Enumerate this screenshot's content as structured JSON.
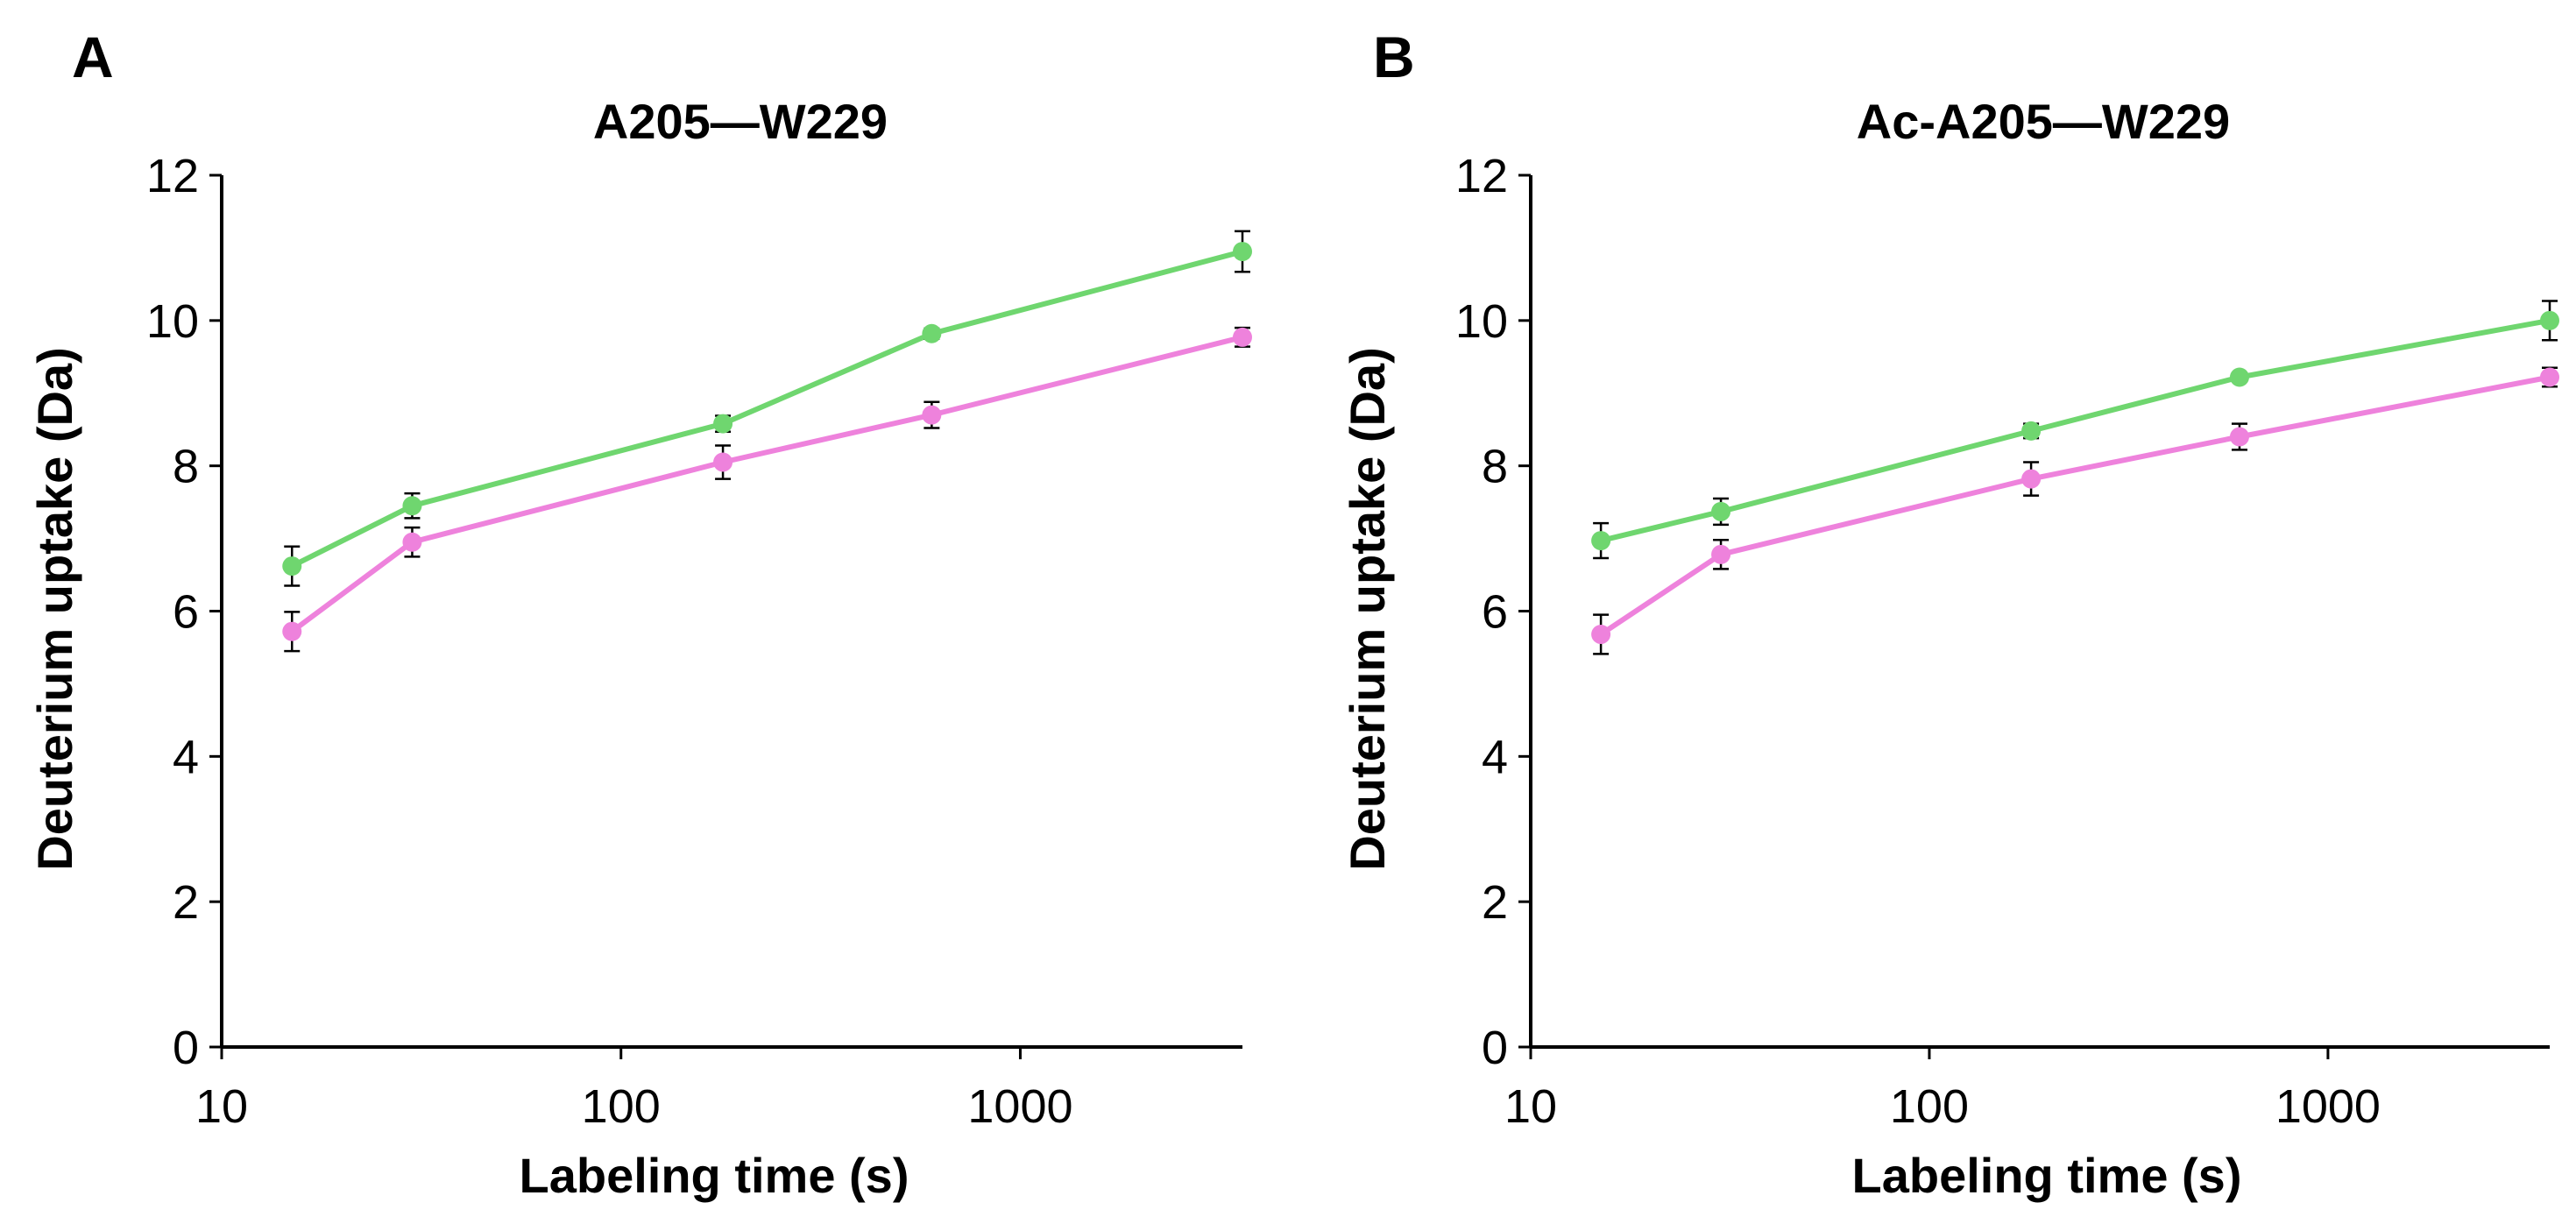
{
  "chart_data": [
    {
      "type": "line",
      "panel_letter": "A",
      "title": "A205—W229",
      "xlabel": "Labeling time (s)",
      "ylabel": "Deuterium uptake (Da)",
      "xscale": "log",
      "xlim": [
        10,
        3600
      ],
      "ylim": [
        0,
        12
      ],
      "xticks": [
        10,
        100,
        1000
      ],
      "xtick_labels": [
        "10",
        "100",
        "1000"
      ],
      "yticks": [
        0,
        2,
        4,
        6,
        8,
        10,
        12
      ],
      "ytick_labels": [
        "0",
        "2",
        "4",
        "6",
        "8",
        "10",
        "12"
      ],
      "grid": false,
      "x": [
        15,
        30,
        180,
        600,
        3600
      ],
      "series": [
        {
          "name": "green",
          "color": "#6fd66f",
          "values": [
            6.62,
            7.45,
            8.58,
            9.82,
            10.95
          ],
          "errors": [
            0.27,
            0.17,
            0.11,
            0.07,
            0.28
          ]
        },
        {
          "name": "pink",
          "color": "#ee82dc",
          "values": [
            5.72,
            6.95,
            8.05,
            8.7,
            9.77
          ],
          "errors": [
            0.27,
            0.2,
            0.23,
            0.18,
            0.13
          ]
        }
      ]
    },
    {
      "type": "line",
      "panel_letter": "B",
      "title": "Ac-A205—W229",
      "xlabel": "Labeling time (s)",
      "ylabel": "Deuterium uptake (Da)",
      "xscale": "log",
      "xlim": [
        10,
        3600
      ],
      "ylim": [
        0,
        12
      ],
      "xticks": [
        10,
        100,
        1000
      ],
      "xtick_labels": [
        "10",
        "100",
        "1000"
      ],
      "yticks": [
        0,
        2,
        4,
        6,
        8,
        10,
        12
      ],
      "ytick_labels": [
        "0",
        "2",
        "4",
        "6",
        "8",
        "10",
        "12"
      ],
      "grid": false,
      "x": [
        15,
        30,
        180,
        600,
        3600
      ],
      "series": [
        {
          "name": "green",
          "color": "#6fd66f",
          "values": [
            6.97,
            7.37,
            8.48,
            9.22,
            10.0
          ],
          "errors": [
            0.24,
            0.18,
            0.1,
            0.05,
            0.27
          ]
        },
        {
          "name": "pink",
          "color": "#ee82dc",
          "values": [
            5.68,
            6.78,
            7.82,
            8.4,
            9.22
          ],
          "errors": [
            0.27,
            0.2,
            0.23,
            0.18,
            0.13
          ]
        }
      ]
    }
  ]
}
